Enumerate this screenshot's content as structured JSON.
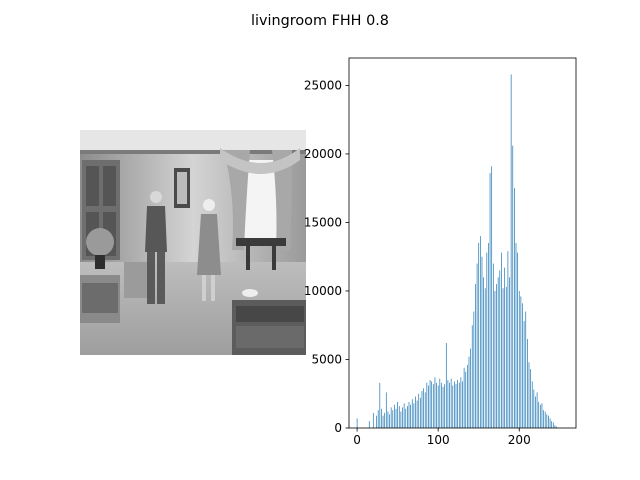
{
  "figure": {
    "suptitle": "livingroom FHH 0.8"
  },
  "image_panel": {
    "subject": "grayscale photo of a living room with two people standing"
  },
  "chart_data": {
    "type": "bar",
    "title": "",
    "xlabel": "",
    "ylabel": "",
    "xlim": [
      -10,
      270
    ],
    "ylim": [
      0,
      27000
    ],
    "x_ticks": [
      0,
      100,
      200
    ],
    "y_ticks": [
      0,
      5000,
      10000,
      15000,
      20000,
      25000
    ],
    "grid": false,
    "bar_color": "#1f77b4",
    "series": [
      {
        "x": [
          0,
          15,
          20,
          24,
          26,
          28,
          30,
          32,
          34,
          36,
          38,
          40,
          42,
          44,
          46,
          48,
          50,
          52,
          54,
          56,
          58,
          60,
          62,
          64,
          66,
          68,
          70,
          72,
          74,
          76,
          78,
          80,
          82,
          84,
          86,
          88,
          90,
          92,
          94,
          96,
          98,
          100,
          102,
          104,
          106,
          108,
          110,
          112,
          114,
          116,
          118,
          120,
          122,
          124,
          126,
          128,
          130,
          132,
          134,
          136,
          138,
          140,
          142,
          144,
          146,
          148,
          150,
          152,
          154,
          156,
          158,
          160,
          162,
          164,
          166,
          168,
          170,
          172,
          174,
          176,
          178,
          180,
          182,
          184,
          186,
          188,
          190,
          192,
          194,
          196,
          198,
          200,
          202,
          204,
          206,
          208,
          210,
          212,
          214,
          216,
          218,
          220,
          222,
          224,
          226,
          228,
          230,
          232,
          234,
          236,
          238,
          240,
          242,
          244,
          246
        ],
        "values": [
          700,
          500,
          1100,
          900,
          1300,
          3300,
          1400,
          900,
          1100,
          2600,
          1200,
          1000,
          1500,
          1300,
          1700,
          1400,
          1900,
          1600,
          1200,
          1500,
          1800,
          1400,
          1600,
          1900,
          1700,
          2100,
          1800,
          2300,
          2000,
          2500,
          2200,
          2700,
          2900,
          2600,
          3300,
          3100,
          3500,
          3400,
          3200,
          3700,
          3300,
          3100,
          3600,
          3300,
          3000,
          3200,
          6200,
          3500,
          3300,
          3600,
          3100,
          3400,
          3200,
          3500,
          3300,
          3700,
          3400,
          4400,
          4100,
          4600,
          5200,
          5800,
          7500,
          8500,
          10500,
          12000,
          13500,
          14000,
          12500,
          11000,
          10200,
          12800,
          13500,
          18600,
          19100,
          12000,
          10000,
          10500,
          11000,
          11500,
          12800,
          10200,
          11700,
          10300,
          12900,
          11000,
          25800,
          20600,
          17500,
          13500,
          12800,
          10000,
          9600,
          9100,
          7800,
          8500,
          6500,
          4800,
          4300,
          3400,
          2800,
          2300,
          2600,
          1900,
          1700,
          1800,
          1300,
          1200,
          1000,
          900,
          700,
          500,
          400,
          200,
          100
        ]
      }
    ]
  }
}
